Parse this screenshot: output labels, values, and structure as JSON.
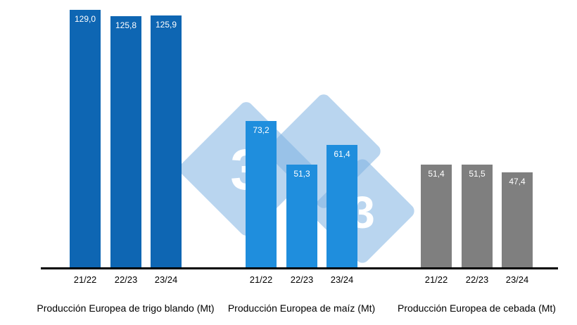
{
  "chart_data": {
    "type": "bar",
    "categories": [
      "21/22",
      "22/23",
      "23/24"
    ],
    "series": [
      {
        "name": "Producción Europea de trigo blando (Mt)",
        "values": [
          129.0,
          125.8,
          125.9
        ],
        "value_labels": [
          "129,0",
          "125,8",
          "125,9"
        ],
        "color": "#0e66b3"
      },
      {
        "name": "Producción Europea de maíz (Mt)",
        "values": [
          73.2,
          51.3,
          61.4
        ],
        "value_labels": [
          "73,2",
          "51,3",
          "61,4"
        ],
        "color": "#1f8edd"
      },
      {
        "name": "Producción Europea de cebada (Mt)",
        "values": [
          51.4,
          51.5,
          47.4
        ],
        "value_labels": [
          "51,4",
          "51,5",
          "47,4"
        ],
        "color": "#7f7f7f"
      }
    ],
    "title": "",
    "xlabel": "",
    "ylabel": "",
    "ylim": [
      0,
      133
    ],
    "grid": false,
    "legend_position": "none",
    "value_label_color": "#ffffff",
    "axis_color": "#000000"
  },
  "watermark": {
    "glyph": "3",
    "diamond_color": "#7fb2e2"
  }
}
